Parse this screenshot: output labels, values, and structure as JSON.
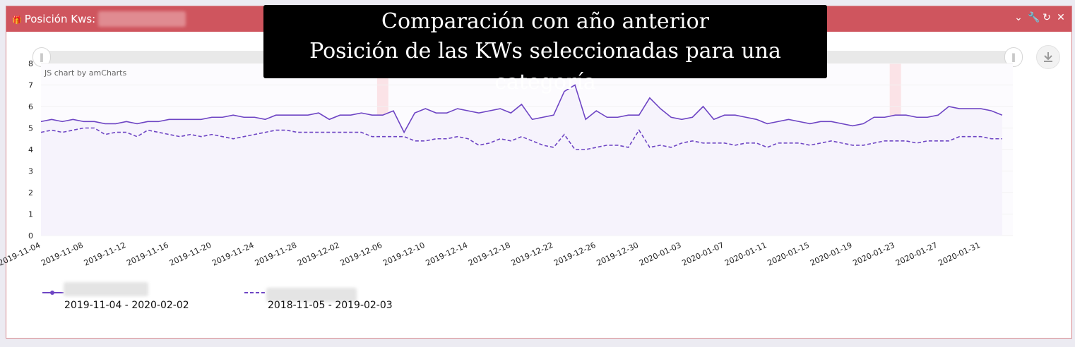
{
  "header": {
    "title": "Posición Kws:",
    "icon": "gift-icon",
    "controls": [
      "chevron-down-icon",
      "wrench-icon",
      "refresh-icon",
      "close-icon"
    ]
  },
  "overlay": {
    "line1": "Comparación con año anterior",
    "line2": "Posición de las KWs seleccionadas para una categoría"
  },
  "chart": {
    "watermark": "JS chart by amCharts"
  },
  "chart_data": {
    "type": "line",
    "ylim": [
      0,
      8
    ],
    "yticks": [
      0,
      1,
      2,
      3,
      4,
      5,
      6,
      7,
      8
    ],
    "xlim": [
      "2019-11-04",
      "2020-02-03"
    ],
    "xtick_labels": [
      "2019-11-04",
      "2019-11-08",
      "2019-11-12",
      "2019-11-16",
      "2019-11-20",
      "2019-11-24",
      "2019-11-28",
      "2019-12-02",
      "2019-12-06",
      "2019-12-10",
      "2019-12-14",
      "2019-12-18",
      "2019-12-22",
      "2019-12-26",
      "2019-12-30",
      "2020-01-03",
      "2020-01-07",
      "2020-01-11",
      "2020-01-15",
      "2020-01-19",
      "2020-01-23",
      "2020-01-27",
      "2020-01-31"
    ],
    "x_start": "2019-11-04",
    "highlight_dates": [
      "2019-12-06",
      "2020-01-23"
    ],
    "series": [
      {
        "legend_label": "2019-11-04 - 2020-02-02",
        "style": "solid",
        "color": "#6e45c4",
        "values": [
          5.3,
          5.4,
          5.3,
          5.4,
          5.3,
          5.3,
          5.2,
          5.2,
          5.3,
          5.2,
          5.3,
          5.3,
          5.4,
          5.4,
          5.4,
          5.4,
          5.5,
          5.5,
          5.6,
          5.5,
          5.5,
          5.4,
          5.6,
          5.6,
          5.6,
          5.6,
          5.7,
          5.4,
          5.6,
          5.6,
          5.7,
          5.6,
          5.6,
          5.8,
          4.8,
          5.7,
          5.9,
          5.7,
          5.7,
          5.9,
          5.8,
          5.7,
          5.8,
          5.9,
          5.7,
          6.1,
          5.4,
          5.5,
          5.6,
          6.7,
          7.0,
          5.4,
          5.8,
          5.5,
          5.5,
          5.6,
          5.6,
          6.4,
          5.9,
          5.5,
          5.4,
          5.5,
          6.0,
          5.4,
          5.6,
          5.6,
          5.5,
          5.4,
          5.2,
          5.3,
          5.4,
          5.3,
          5.2,
          5.3,
          5.3,
          5.2,
          5.1,
          5.2,
          5.5,
          5.5,
          5.6,
          5.6,
          5.5,
          5.5,
          5.6,
          6.0,
          5.9,
          5.9,
          5.9,
          5.8,
          5.6
        ]
      },
      {
        "legend_label": "2018-11-05 - 2019-02-03",
        "style": "dashed",
        "color": "#6e45c4",
        "values": [
          4.8,
          4.9,
          4.8,
          4.9,
          5.0,
          5.0,
          4.7,
          4.8,
          4.8,
          4.6,
          4.9,
          4.8,
          4.7,
          4.6,
          4.7,
          4.6,
          4.7,
          4.6,
          4.5,
          4.6,
          4.7,
          4.8,
          4.9,
          4.9,
          4.8,
          4.8,
          4.8,
          4.8,
          4.8,
          4.8,
          4.8,
          4.6,
          4.6,
          4.6,
          4.6,
          4.4,
          4.4,
          4.5,
          4.5,
          4.6,
          4.5,
          4.2,
          4.3,
          4.5,
          4.4,
          4.6,
          4.4,
          4.2,
          4.1,
          4.7,
          4.0,
          4.0,
          4.1,
          4.2,
          4.2,
          4.1,
          4.9,
          4.1,
          4.2,
          4.1,
          4.3,
          4.4,
          4.3,
          4.3,
          4.3,
          4.2,
          4.3,
          4.3,
          4.1,
          4.3,
          4.3,
          4.3,
          4.2,
          4.3,
          4.4,
          4.3,
          4.2,
          4.2,
          4.3,
          4.4,
          4.4,
          4.4,
          4.3,
          4.4,
          4.4,
          4.4,
          4.6,
          4.6,
          4.6,
          4.5,
          4.5
        ]
      }
    ]
  }
}
